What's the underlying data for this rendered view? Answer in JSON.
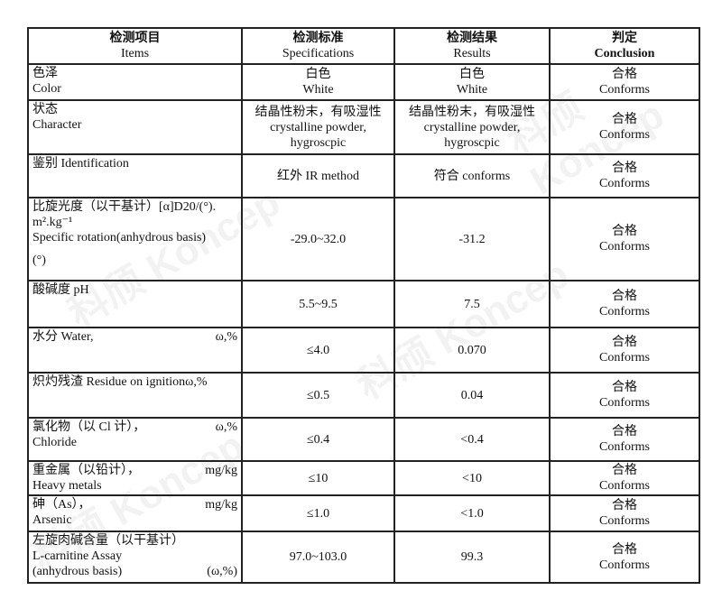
{
  "header": {
    "items_cn": "检测项目",
    "items_en": "Items",
    "spec_cn": "检测标准",
    "spec_en": "Specifications",
    "result_cn": "检测结果",
    "result_en": "Results",
    "concl_cn": "判定",
    "concl_en": "Conclusion"
  },
  "rows": [
    {
      "item_cn": "色泽",
      "item_en": "Color",
      "unit": "",
      "spec": "白色 / White",
      "spec_cn": "白色",
      "spec_en": "White",
      "result_cn": "白色",
      "result_en": "White",
      "concl_cn": "合格",
      "concl_en": "Conforms"
    },
    {
      "item_cn": "状态",
      "item_en": "Character",
      "unit": "",
      "spec_cn": "结晶性粉末，有吸湿性",
      "spec_en": "crystalline powder, hygroscpic",
      "result_cn": "结晶性粉末，有吸湿性",
      "result_en": "crystalline powder, hygroscpic",
      "concl_cn": "合格",
      "concl_en": "Conforms"
    },
    {
      "item_cn": "鉴别 Identification",
      "item_en": "",
      "unit": "",
      "spec_cn": "红外 IR method",
      "spec_en": "",
      "result_cn": "符合  conforms",
      "result_en": "",
      "concl_cn": "合格",
      "concl_en": "Conforms"
    },
    {
      "item_cn": "比旋光度（以干基计）[α]D20/(°).",
      "item_en": "m².kg⁻¹",
      "item_en2": "Specific rotation(anhydrous basis)",
      "item_en3": "(°)",
      "unit": "",
      "spec_cn": "-29.0~32.0",
      "spec_en": "",
      "result_cn": "-31.2",
      "result_en": "",
      "concl_cn": "合格",
      "concl_en": "Conforms"
    },
    {
      "item_cn": "酸碱度 pH",
      "item_en": "",
      "unit": "",
      "spec_cn": "5.5~9.5",
      "spec_en": "",
      "result_cn": "7.5",
      "result_en": "",
      "concl_cn": "合格",
      "concl_en": "Conforms"
    },
    {
      "item_cn": "水分 Water,",
      "item_en": "",
      "unit": "ω,%",
      "spec_cn": "≤4.0",
      "spec_en": "",
      "result_cn": "0.070",
      "result_en": "",
      "concl_cn": "合格",
      "concl_en": "Conforms"
    },
    {
      "item_cn": "炽灼残渣 Residue on ignitionω,%",
      "item_en": "",
      "unit": "",
      "spec_cn": "≤0.5",
      "spec_en": "",
      "result_cn": "0.04",
      "result_en": "",
      "concl_cn": "合格",
      "concl_en": "Conforms"
    },
    {
      "item_cn": "氯化物（以 Cl 计），",
      "item_en": "Chloride",
      "unit": "ω,%",
      "spec_cn": "≤0.4",
      "spec_en": "",
      "result_cn": "<0.4",
      "result_en": "",
      "concl_cn": "合格",
      "concl_en": "Conforms"
    },
    {
      "item_cn": "重金属（以铅计），",
      "item_en": "Heavy metals",
      "unit": "mg/kg",
      "spec_cn": "≤10",
      "spec_en": "",
      "result_cn": "<10",
      "result_en": "",
      "concl_cn": "合格",
      "concl_en": "Conforms"
    },
    {
      "item_cn": "砷（As），",
      "item_en": "Arsenic",
      "unit": "mg/kg",
      "spec_cn": "≤1.0",
      "spec_en": "",
      "result_cn": "<1.0",
      "result_en": "",
      "concl_cn": "合格",
      "concl_en": "Conforms"
    },
    {
      "item_cn": "左旋肉碱含量（以干基计）",
      "item_en": "L-carnitine Assay",
      "item_en2": "(anhydrous basis)",
      "unit": "(ω,%)",
      "spec_cn": "97.0~103.0",
      "spec_en": "",
      "result_cn": "99.3",
      "result_en": "",
      "concl_cn": "合格",
      "concl_en": "Conforms"
    }
  ],
  "watermark": "科颀 Koncep"
}
